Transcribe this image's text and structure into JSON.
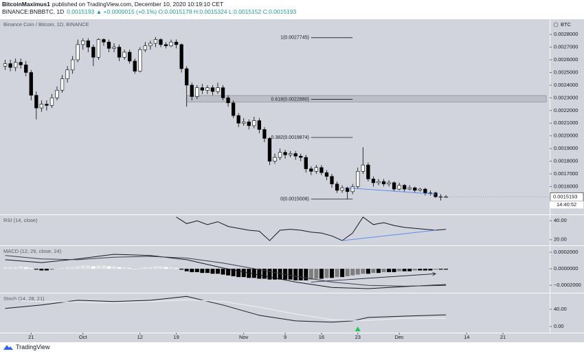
{
  "header": {
    "author": "BitcoinMaximus1",
    "published": "published on TradingView.com, December 10, 2020 10:19:10 CET",
    "symbol": "BINANCE:BNBBTC, 1D",
    "quote": "0.0015193 ▲ +0.0000015 (+0.1%) O:0.0015178 H:0.0015324 L:0.0015152 C:0.0015193"
  },
  "footer": {
    "brand": "TradingView"
  },
  "chart_data": [
    {
      "type": "candlestick",
      "title": "Binance Coin / Bitcoin, 1D, BINANCE",
      "y_unit": "BTC",
      "countdown": "14:40:52",
      "up_color": "#ffffff",
      "down_color": "#000000",
      "grid": false,
      "xlim": [
        "2020-09-15",
        "2020-12-30"
      ],
      "xticks": [
        {
          "value": "2020-09-21",
          "label": "21"
        },
        {
          "value": "2020-10-01",
          "label": "Oct"
        },
        {
          "value": "2020-10-12",
          "label": "12"
        },
        {
          "value": "2020-10-19",
          "label": "19"
        },
        {
          "value": "2020-11-01",
          "label": "Nov"
        },
        {
          "value": "2020-11-09",
          "label": "9"
        },
        {
          "value": "2020-11-16",
          "label": "16"
        },
        {
          "value": "2020-11-23",
          "label": "23"
        },
        {
          "value": "2020-12-01",
          "label": "Dec"
        },
        {
          "value": "2020-12-14",
          "label": "14"
        },
        {
          "value": "2020-12-21",
          "label": "21"
        }
      ],
      "ylim": [
        0.00138,
        0.00292
      ],
      "yticks": [
        {
          "value": 0.0016,
          "label": "0.0016000"
        },
        {
          "value": 0.0017,
          "label": "0.0017000"
        },
        {
          "value": 0.0018,
          "label": "0.0018000"
        },
        {
          "value": 0.0019,
          "label": "0.0019000"
        },
        {
          "value": 0.002,
          "label": "0.0020000"
        },
        {
          "value": 0.0021,
          "label": "0.0021000"
        },
        {
          "value": 0.0022,
          "label": "0.0022000"
        },
        {
          "value": 0.0023,
          "label": "0.0023000"
        },
        {
          "value": 0.0024,
          "label": "0.0024000"
        },
        {
          "value": 0.0025,
          "label": "0.0025000"
        },
        {
          "value": 0.0026,
          "label": "0.0026000"
        },
        {
          "value": 0.0027,
          "label": "0.0027000"
        },
        {
          "value": 0.0028,
          "label": "0.0028000"
        }
      ],
      "x": [
        "2020-09-16",
        "2020-09-17",
        "2020-09-18",
        "2020-09-19",
        "2020-09-20",
        "2020-09-21",
        "2020-09-22",
        "2020-09-23",
        "2020-09-24",
        "2020-09-25",
        "2020-09-26",
        "2020-09-27",
        "2020-09-28",
        "2020-09-29",
        "2020-09-30",
        "2020-10-01",
        "2020-10-02",
        "2020-10-03",
        "2020-10-04",
        "2020-10-05",
        "2020-10-06",
        "2020-10-07",
        "2020-10-08",
        "2020-10-09",
        "2020-10-10",
        "2020-10-11",
        "2020-10-12",
        "2020-10-13",
        "2020-10-14",
        "2020-10-15",
        "2020-10-16",
        "2020-10-17",
        "2020-10-18",
        "2020-10-19",
        "2020-10-20",
        "2020-10-21",
        "2020-10-22",
        "2020-10-23",
        "2020-10-24",
        "2020-10-25",
        "2020-10-26",
        "2020-10-27",
        "2020-10-28",
        "2020-10-29",
        "2020-10-30",
        "2020-10-31",
        "2020-11-01",
        "2020-11-02",
        "2020-11-03",
        "2020-11-04",
        "2020-11-05",
        "2020-11-06",
        "2020-11-07",
        "2020-11-08",
        "2020-11-09",
        "2020-11-10",
        "2020-11-11",
        "2020-11-12",
        "2020-11-13",
        "2020-11-14",
        "2020-11-15",
        "2020-11-16",
        "2020-11-17",
        "2020-11-18",
        "2020-11-19",
        "2020-11-20",
        "2020-11-21",
        "2020-11-22",
        "2020-11-23",
        "2020-11-24",
        "2020-11-25",
        "2020-11-26",
        "2020-11-27",
        "2020-11-28",
        "2020-11-29",
        "2020-11-30",
        "2020-12-01",
        "2020-12-02",
        "2020-12-03",
        "2020-12-04",
        "2020-12-05",
        "2020-12-06",
        "2020-12-07",
        "2020-12-08",
        "2020-12-09",
        "2020-12-10"
      ],
      "open": [
        0.00255,
        0.00257,
        0.00254,
        0.00258,
        0.00256,
        0.0025,
        0.00232,
        0.00222,
        0.00225,
        0.00224,
        0.0023,
        0.00236,
        0.00245,
        0.00252,
        0.0026,
        0.00272,
        0.00275,
        0.0027,
        0.00262,
        0.00276,
        0.00274,
        0.00269,
        0.0027,
        0.00262,
        0.00266,
        0.00259,
        0.00251,
        0.00268,
        0.00271,
        0.00273,
        0.00276,
        0.00272,
        0.00271,
        0.00274,
        0.00272,
        0.00253,
        0.0024,
        0.00231,
        0.00238,
        0.00236,
        0.00238,
        0.00235,
        0.00238,
        0.0023,
        0.00226,
        0.00216,
        0.0021,
        0.00211,
        0.00208,
        0.00212,
        0.00205,
        0.00198,
        0.0018,
        0.00183,
        0.00187,
        0.00185,
        0.00186,
        0.00184,
        0.00183,
        0.00174,
        0.00172,
        0.00175,
        0.00171,
        0.00168,
        0.00162,
        0.00157,
        0.00159,
        0.00156,
        0.0016,
        0.00172,
        0.00177,
        0.00166,
        0.00163,
        0.00164,
        0.00162,
        0.00163,
        0.00158,
        0.00161,
        0.00158,
        0.00159,
        0.00157,
        0.00158,
        0.00155,
        0.00155,
        0.00152,
        0.0015178
      ],
      "high": [
        0.0026,
        0.0026,
        0.00261,
        0.00261,
        0.00259,
        0.00252,
        0.00235,
        0.00228,
        0.00228,
        0.00233,
        0.00239,
        0.00248,
        0.00255,
        0.00263,
        0.00276,
        0.00277,
        0.00277,
        0.00272,
        0.00277,
        0.00277,
        0.00276,
        0.00273,
        0.00272,
        0.00268,
        0.00268,
        0.00261,
        0.0027,
        0.00274,
        0.00275,
        0.00278,
        0.00277,
        0.00274,
        0.00276,
        0.00276,
        0.00273,
        0.00255,
        0.00242,
        0.0024,
        0.00241,
        0.0024,
        0.0024,
        0.00242,
        0.0024,
        0.00232,
        0.00228,
        0.00218,
        0.00214,
        0.00213,
        0.00215,
        0.00214,
        0.00207,
        0.00199,
        0.00186,
        0.0019,
        0.00189,
        0.00188,
        0.00188,
        0.00186,
        0.00185,
        0.00176,
        0.00177,
        0.00177,
        0.00173,
        0.0017,
        0.00164,
        0.00161,
        0.0016,
        0.00162,
        0.00175,
        0.00191,
        0.00179,
        0.00168,
        0.00166,
        0.00166,
        0.00165,
        0.00164,
        0.00163,
        0.00162,
        0.00161,
        0.0016,
        0.00159,
        0.00159,
        0.00157,
        0.00156,
        0.00154,
        0.0015324
      ],
      "low": [
        0.00252,
        0.00251,
        0.00251,
        0.00253,
        0.00247,
        0.00228,
        0.00213,
        0.00219,
        0.0022,
        0.00222,
        0.00228,
        0.00234,
        0.00242,
        0.00249,
        0.00258,
        0.00268,
        0.00266,
        0.00255,
        0.0026,
        0.00271,
        0.00266,
        0.00266,
        0.00259,
        0.0026,
        0.00257,
        0.00249,
        0.0025,
        0.00266,
        0.00268,
        0.0027,
        0.0027,
        0.00269,
        0.0027,
        0.00269,
        0.0025,
        0.00223,
        0.00228,
        0.00229,
        0.00233,
        0.00233,
        0.00232,
        0.00233,
        0.00228,
        0.00223,
        0.00214,
        0.00207,
        0.00208,
        0.00205,
        0.00206,
        0.00202,
        0.00195,
        0.00177,
        0.00178,
        0.00181,
        0.00182,
        0.00183,
        0.00181,
        0.0018,
        0.00171,
        0.00169,
        0.0017,
        0.00169,
        0.00165,
        0.00159,
        0.00155,
        0.00155,
        0.0015,
        0.00154,
        0.00158,
        0.0017,
        0.00164,
        0.0016,
        0.00161,
        0.0016,
        0.0016,
        0.00156,
        0.00157,
        0.00156,
        0.00157,
        0.00155,
        0.00156,
        0.00153,
        0.00153,
        0.00151,
        0.00149,
        0.0015152
      ],
      "close": [
        0.00257,
        0.00254,
        0.00258,
        0.00256,
        0.0025,
        0.00232,
        0.00222,
        0.00225,
        0.00224,
        0.0023,
        0.00236,
        0.00245,
        0.00252,
        0.0026,
        0.00272,
        0.00275,
        0.0027,
        0.00262,
        0.00276,
        0.00274,
        0.00269,
        0.0027,
        0.00262,
        0.00266,
        0.00259,
        0.00251,
        0.00268,
        0.00271,
        0.00273,
        0.00276,
        0.00272,
        0.00271,
        0.00274,
        0.00272,
        0.00253,
        0.0024,
        0.00231,
        0.00238,
        0.00236,
        0.00238,
        0.00235,
        0.00238,
        0.0023,
        0.00226,
        0.00216,
        0.0021,
        0.00211,
        0.00208,
        0.00212,
        0.00205,
        0.00198,
        0.0018,
        0.00183,
        0.00187,
        0.00185,
        0.00186,
        0.00184,
        0.00183,
        0.00174,
        0.00172,
        0.00175,
        0.00171,
        0.00168,
        0.00162,
        0.00157,
        0.00159,
        0.00156,
        0.0016,
        0.00172,
        0.00177,
        0.00166,
        0.00163,
        0.00164,
        0.00162,
        0.00163,
        0.00158,
        0.00161,
        0.00158,
        0.00159,
        0.00157,
        0.00158,
        0.00155,
        0.00155,
        0.00152,
        0.00152,
        0.0015193
      ],
      "fib": {
        "x": [
          "2020-11-14",
          "2020-11-22"
        ],
        "color": "#131722",
        "levels": [
          {
            "label": "1(0.0027745)",
            "value": 0.0027745
          },
          {
            "label": "0.618(0.0022880)",
            "value": 0.002288
          },
          {
            "label": "0.382(0.0019874)",
            "value": 0.0019874
          },
          {
            "label": "0(0.0015008)",
            "value": 0.0015008
          }
        ]
      },
      "zone": {
        "start": "2020-10-21",
        "ylim": [
          0.002268,
          0.002318
        ],
        "color": "#bcbfc8"
      },
      "trendlines": [
        {
          "x": [
            "2020-11-21",
            "2020-12-08"
          ],
          "y": [
            0.00159,
            0.00154
          ],
          "color": "#5b8def"
        }
      ]
    },
    {
      "type": "line",
      "title": "RSI (14, close)",
      "ylim": [
        14,
        46
      ],
      "yticks": [
        {
          "value": 40,
          "label": "40.00"
        },
        {
          "value": 20,
          "label": "20.00"
        }
      ],
      "series": [
        {
          "color": "#131722",
          "x": [
            "2020-10-19",
            "2020-10-21",
            "2020-10-23",
            "2020-10-25",
            "2020-10-27",
            "2020-10-29",
            "2020-10-31",
            "2020-11-02",
            "2020-11-04",
            "2020-11-06",
            "2020-11-08",
            "2020-11-10",
            "2020-11-12",
            "2020-11-14",
            "2020-11-16",
            "2020-11-18",
            "2020-11-20",
            "2020-11-22",
            "2020-11-24",
            "2020-11-26",
            "2020-11-28",
            "2020-11-30",
            "2020-12-02",
            "2020-12-04",
            "2020-12-06",
            "2020-12-08",
            "2020-12-10"
          ],
          "values": [
            44,
            37,
            40,
            36,
            39,
            34,
            32,
            30,
            29,
            19,
            30,
            31,
            30,
            28,
            27,
            24,
            19,
            27,
            44,
            36,
            38,
            35,
            33,
            32,
            31,
            30,
            31
          ]
        }
      ],
      "trendlines": [
        {
          "x": [
            "2020-11-20",
            "2020-12-08"
          ],
          "y": [
            19,
            30
          ],
          "color": "#5b8def"
        }
      ]
    },
    {
      "type": "histogram",
      "title": "MACD (12, 26, close, 24)",
      "ylim": [
        -0.00029,
        0.000275
      ],
      "yticks": [
        {
          "value": 0.0002,
          "label": "0.0002000"
        },
        {
          "value": 0,
          "label": "0.0000000"
        },
        {
          "value": -0.0002,
          "label": "−0.0002000"
        }
      ],
      "colors": {
        "pos_rising": "#e6e6e6",
        "pos_falling": "#ffffff",
        "neg_falling": "#000000",
        "neg_rising": "#7d7d7d"
      },
      "values": [
        2e-05,
        2e-05,
        2e-05,
        3e-05,
        2e-05,
        1e-05,
        -1e-05,
        -2e-05,
        -2e-05,
        -1e-05,
        0,
        1e-05,
        2e-05,
        2e-05,
        3e-05,
        4e-05,
        4e-05,
        3e-05,
        4e-05,
        4e-05,
        3e-05,
        3e-05,
        2e-05,
        2e-05,
        1e-05,
        0,
        1e-05,
        2e-05,
        2e-05,
        3e-05,
        3e-05,
        2e-05,
        2e-05,
        1e-05,
        -1e-05,
        -3e-05,
        -4e-05,
        -4e-05,
        -5e-05,
        -5e-05,
        -6e-05,
        -6e-05,
        -7e-05,
        -8e-05,
        -9e-05,
        -0.0001,
        -0.0001,
        -0.00011,
        -0.00011,
        -0.00012,
        -0.00012,
        -0.00013,
        -0.00013,
        -0.00013,
        -0.00013,
        -0.00013,
        -0.00014,
        -0.00014,
        -0.00014,
        -0.00013,
        -0.00012,
        -0.00012,
        -0.00011,
        -0.00011,
        -0.0001,
        -0.0001,
        -9e-05,
        -8e-05,
        -7e-05,
        -6e-05,
        -6e-05,
        -5e-05,
        -5e-05,
        -4e-05,
        -4e-05,
        -4e-05,
        -3e-05,
        -3e-05,
        -3e-05,
        -2e-05,
        -2e-05,
        -2e-05,
        -2e-05,
        -1e-05,
        -1e-05,
        -1e-05
      ],
      "series": [
        {
          "color": "#131722",
          "x": [
            "2020-09-16",
            "2020-09-23",
            "2020-09-30",
            "2020-10-07",
            "2020-10-14",
            "2020-10-21",
            "2020-10-28",
            "2020-11-04",
            "2020-11-11",
            "2020-11-18",
            "2020-11-25",
            "2020-12-02",
            "2020-12-10"
          ],
          "values": [
            0.00011,
            7.5e-05,
            0.00012,
            0.000175,
            0.00016,
            0.00011,
            1e-05,
            -7.5e-05,
            -0.00016,
            -0.000225,
            -0.00024,
            -0.000215,
            -0.00019
          ]
        },
        {
          "color": "#3a3d45",
          "x": [
            "2020-09-16",
            "2020-09-23",
            "2020-09-30",
            "2020-10-07",
            "2020-10-14",
            "2020-10-21",
            "2020-10-28",
            "2020-11-04",
            "2020-11-11",
            "2020-11-18",
            "2020-11-25",
            "2020-12-02",
            "2020-12-10"
          ],
          "values": [
            0.00016,
            0.00012,
            0.00011,
            0.00014,
            0.00015,
            0.00013,
            7e-05,
            -1e-05,
            -9e-05,
            -0.00016,
            -0.0002,
            -0.00021,
            -0.0002
          ]
        }
      ],
      "arrow": {
        "x": [
          "2020-11-14",
          "2020-12-08"
        ],
        "y": [
          -0.00016,
          -6e-05
        ],
        "color": "#131722"
      }
    },
    {
      "type": "line",
      "title": "Stoch (14, 28, 21)",
      "ylim": [
        -14.4,
        76.8
      ],
      "yticks": [
        {
          "value": 40,
          "label": "40.00"
        },
        {
          "value": 0,
          "label": "0.00"
        }
      ],
      "series": [
        {
          "color": "#131722",
          "x": [
            "2020-09-16",
            "2020-09-23",
            "2020-09-30",
            "2020-10-07",
            "2020-10-14",
            "2020-10-21",
            "2020-10-28",
            "2020-11-04",
            "2020-11-11",
            "2020-11-18",
            "2020-11-22",
            "2020-11-25",
            "2020-12-02",
            "2020-12-10"
          ],
          "values": [
            42,
            50,
            61,
            58,
            61,
            70,
            50,
            26,
            13,
            10,
            13,
            21,
            24,
            27
          ]
        },
        {
          "color": "#f2f2f2",
          "x": [
            "2020-09-16",
            "2020-09-23",
            "2020-09-30",
            "2020-10-07",
            "2020-10-14",
            "2020-10-21",
            "2020-10-28",
            "2020-11-04",
            "2020-11-11",
            "2020-11-18",
            "2020-11-22",
            "2020-11-25",
            "2020-12-02",
            "2020-12-10"
          ],
          "values": [
            62,
            58,
            57,
            55,
            58,
            62,
            58,
            45,
            29,
            16,
            14,
            14,
            19,
            19
          ]
        }
      ],
      "marker": {
        "x": "2020-11-23",
        "color": "#21c45d"
      }
    }
  ]
}
